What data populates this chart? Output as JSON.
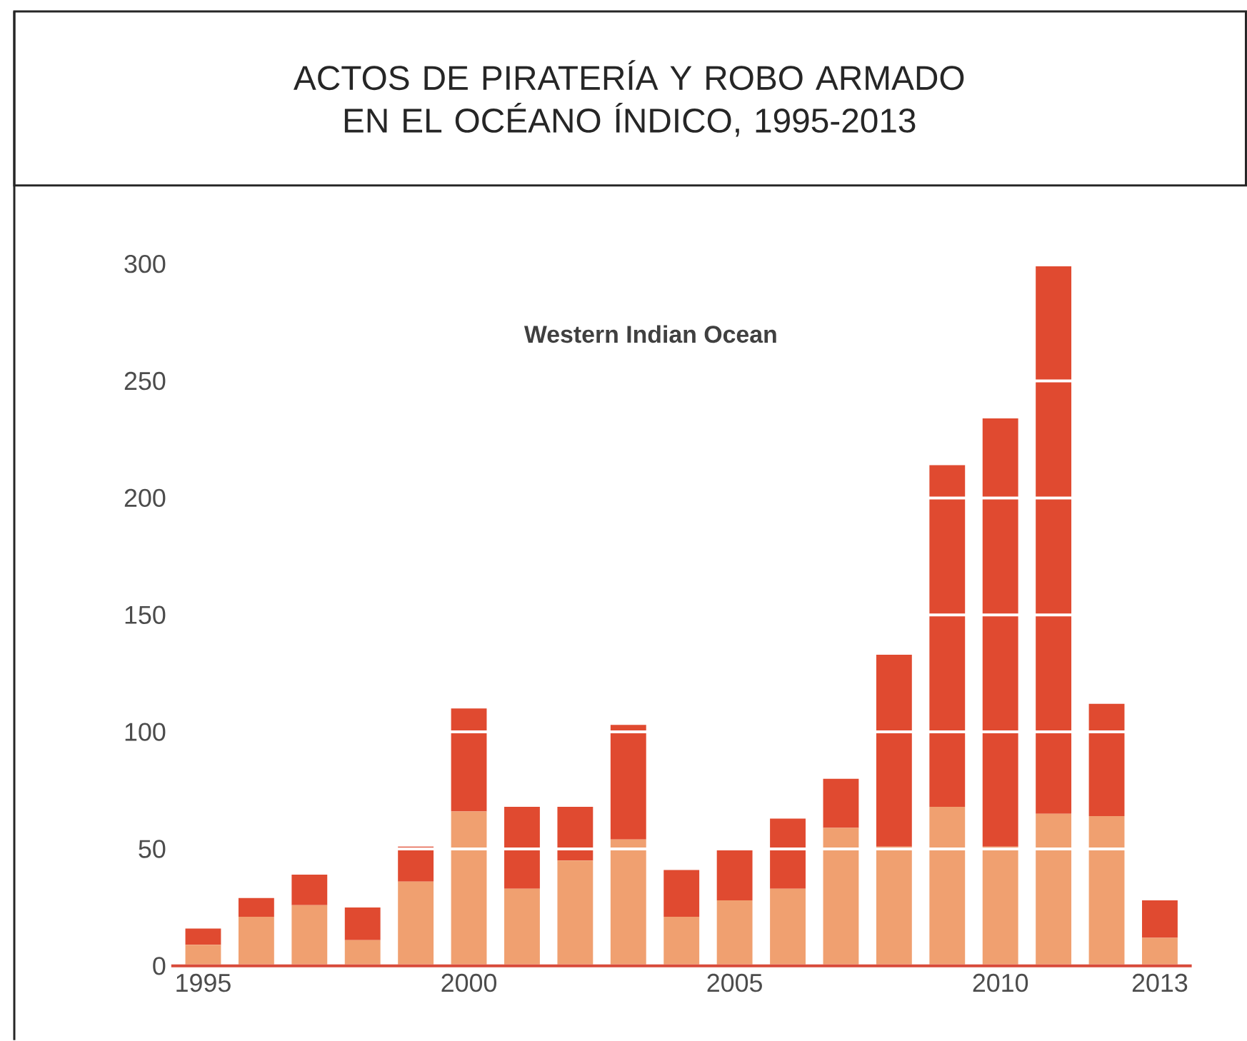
{
  "chart_data": {
    "type": "bar",
    "title": "ACTOS DE PIRATERÍA Y ROBO ARMADO EN EL OCÉANO ÍNDICO, 1995-2013",
    "annotations": [
      "Western Indian Ocean"
    ],
    "x": [
      1995,
      1996,
      1997,
      1998,
      1999,
      2000,
      2001,
      2002,
      2003,
      2004,
      2005,
      2006,
      2007,
      2008,
      2009,
      2010,
      2011,
      2012,
      2013
    ],
    "stacked": true,
    "series": [
      {
        "color": "#f0a070",
        "values": [
          9,
          21,
          26,
          11,
          36,
          66,
          33,
          45,
          54,
          21,
          28,
          33,
          59,
          51,
          68,
          51,
          65,
          64,
          12
        ]
      },
      {
        "color": "#e04a30",
        "values": [
          7,
          8,
          13,
          14,
          15,
          44,
          35,
          23,
          49,
          20,
          22,
          30,
          21,
          82,
          146,
          183,
          234,
          48,
          16
        ]
      }
    ],
    "xlim": [
      1994.4,
      2013.6
    ],
    "xticks": [
      1995,
      2000,
      2005,
      2010,
      2013
    ],
    "ylim": [
      0,
      300
    ],
    "yticks": [
      0,
      50,
      100,
      150,
      200,
      250,
      300
    ],
    "grid": "y"
  }
}
